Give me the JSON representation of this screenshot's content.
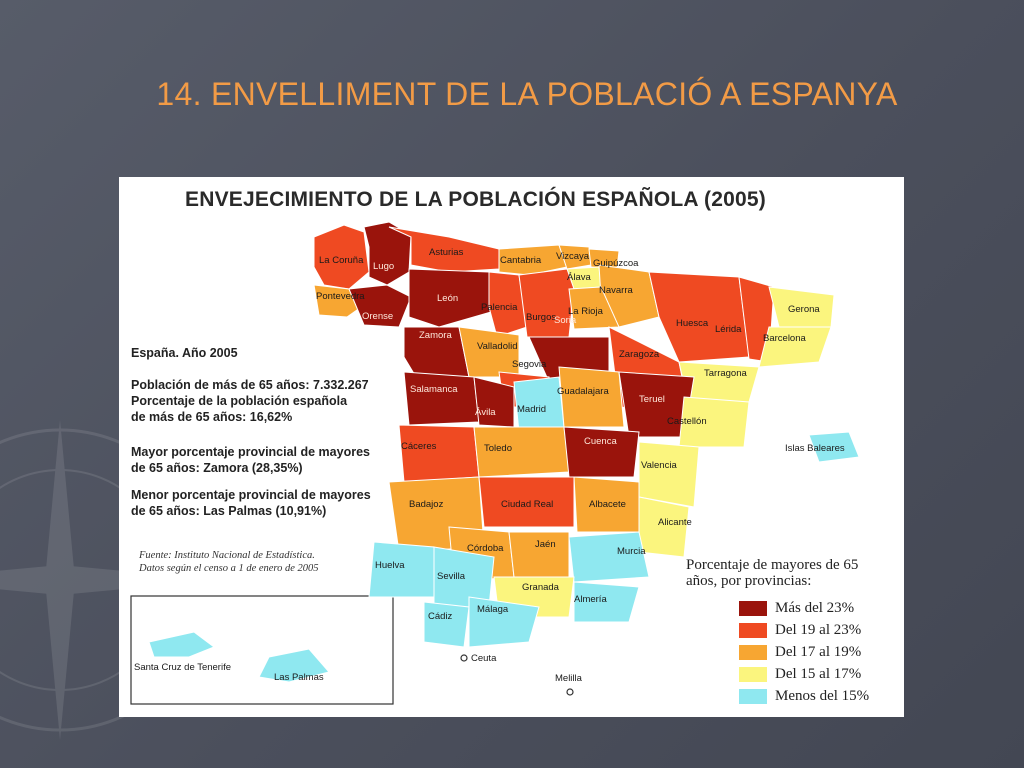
{
  "slide": {
    "title": "14. ENVELLIMENT DE LA POBLACIÓ A ESPANYA"
  },
  "map": {
    "title": "ENVEJECIMIENTO DE LA POBLACIÓN ESPAÑOLA (2005)",
    "info": {
      "heading": "España. Año 2005",
      "population_lines": [
        "Población de más de 65 años: 7.332.267",
        "Porcentaje de la población española",
        "de más de 65 años: 16,62%"
      ],
      "max_lines": [
        "Mayor porcentaje provincial de mayores",
        "de 65 años: Zamora (28,35%)"
      ],
      "min_lines": [
        "Menor porcentaje provincial de mayores",
        "de 65 años: Las Palmas (10,91%)"
      ]
    },
    "source_lines": [
      "Fuente: Instituto Nacional de Estadística.",
      "Datos según el censo a 1 de enero de 2005"
    ],
    "legend": {
      "title_lines": [
        "Porcentaje de mayores de 65",
        "años, por provincias:"
      ],
      "items": [
        {
          "label": "Más del 23%",
          "color": "#9a140c"
        },
        {
          "label": "Del 19 al 23%",
          "color": "#ef4a22"
        },
        {
          "label": "Del 17 al 19%",
          "color": "#f7a632"
        },
        {
          "label": "Del 15 al 17%",
          "color": "#fbf57e"
        },
        {
          "label": "Menos del 15%",
          "color": "#8fe8f0"
        }
      ]
    },
    "provinces": [
      {
        "name": "La Coruña",
        "class": "Del 19 al 23%"
      },
      {
        "name": "Lugo",
        "class": "Más del 23%"
      },
      {
        "name": "Asturias",
        "class": "Del 19 al 23%"
      },
      {
        "name": "Cantabria",
        "class": "Del 17 al 19%"
      },
      {
        "name": "Vizcaya",
        "class": "Del 17 al 19%"
      },
      {
        "name": "Guipúzcoa",
        "class": "Del 17 al 19%"
      },
      {
        "name": "Álava",
        "class": "Del 15 al 17%"
      },
      {
        "name": "Navarra",
        "class": "Del 17 al 19%"
      },
      {
        "name": "Pontevedra",
        "class": "Del 17 al 19%"
      },
      {
        "name": "Orense",
        "class": "Más del 23%"
      },
      {
        "name": "León",
        "class": "Más del 23%"
      },
      {
        "name": "Palencia",
        "class": "Del 19 al 23%"
      },
      {
        "name": "Burgos",
        "class": "Del 19 al 23%"
      },
      {
        "name": "La Rioja",
        "class": "Del 17 al 19%"
      },
      {
        "name": "Huesca",
        "class": "Del 19 al 23%"
      },
      {
        "name": "Lérida",
        "class": "Del 19 al 23%"
      },
      {
        "name": "Gerona",
        "class": "Del 15 al 17%"
      },
      {
        "name": "Barcelona",
        "class": "Del 15 al 17%"
      },
      {
        "name": "Zamora",
        "class": "Más del 23%"
      },
      {
        "name": "Valladolid",
        "class": "Del 17 al 19%"
      },
      {
        "name": "Soria",
        "class": "Más del 23%"
      },
      {
        "name": "Zaragoza",
        "class": "Del 19 al 23%"
      },
      {
        "name": "Segovia",
        "class": "Del 19 al 23%"
      },
      {
        "name": "Tarragona",
        "class": "Del 15 al 17%"
      },
      {
        "name": "Salamanca",
        "class": "Más del 23%"
      },
      {
        "name": "Ávila",
        "class": "Más del 23%"
      },
      {
        "name": "Madrid",
        "class": "Menos del 15%"
      },
      {
        "name": "Guadalajara",
        "class": "Del 17 al 19%"
      },
      {
        "name": "Teruel",
        "class": "Más del 23%"
      },
      {
        "name": "Castellón",
        "class": "Del 15 al 17%"
      },
      {
        "name": "Cáceres",
        "class": "Del 19 al 23%"
      },
      {
        "name": "Toledo",
        "class": "Del 17 al 19%"
      },
      {
        "name": "Cuenca",
        "class": "Más del 23%"
      },
      {
        "name": "Valencia",
        "class": "Del 15 al 17%"
      },
      {
        "name": "Islas Baleares",
        "class": "Menos del 15%"
      },
      {
        "name": "Badajoz",
        "class": "Del 17 al 19%"
      },
      {
        "name": "Ciudad Real",
        "class": "Del 19 al 23%"
      },
      {
        "name": "Albacete",
        "class": "Del 17 al 19%"
      },
      {
        "name": "Alicante",
        "class": "Del 15 al 17%"
      },
      {
        "name": "Córdoba",
        "class": "Del 17 al 19%"
      },
      {
        "name": "Jaén",
        "class": "Del 17 al 19%"
      },
      {
        "name": "Murcia",
        "class": "Menos del 15%"
      },
      {
        "name": "Huelva",
        "class": "Menos del 15%"
      },
      {
        "name": "Sevilla",
        "class": "Menos del 15%"
      },
      {
        "name": "Granada",
        "class": "Del 15 al 17%"
      },
      {
        "name": "Almería",
        "class": "Menos del 15%"
      },
      {
        "name": "Cádiz",
        "class": "Menos del 15%"
      },
      {
        "name": "Málaga",
        "class": "Menos del 15%"
      },
      {
        "name": "Ceuta",
        "class": ""
      },
      {
        "name": "Melilla",
        "class": ""
      },
      {
        "name": "Santa Cruz de Tenerife",
        "class": "Menos del 15%"
      },
      {
        "name": "Las Palmas",
        "class": "Menos del 15%"
      }
    ]
  }
}
